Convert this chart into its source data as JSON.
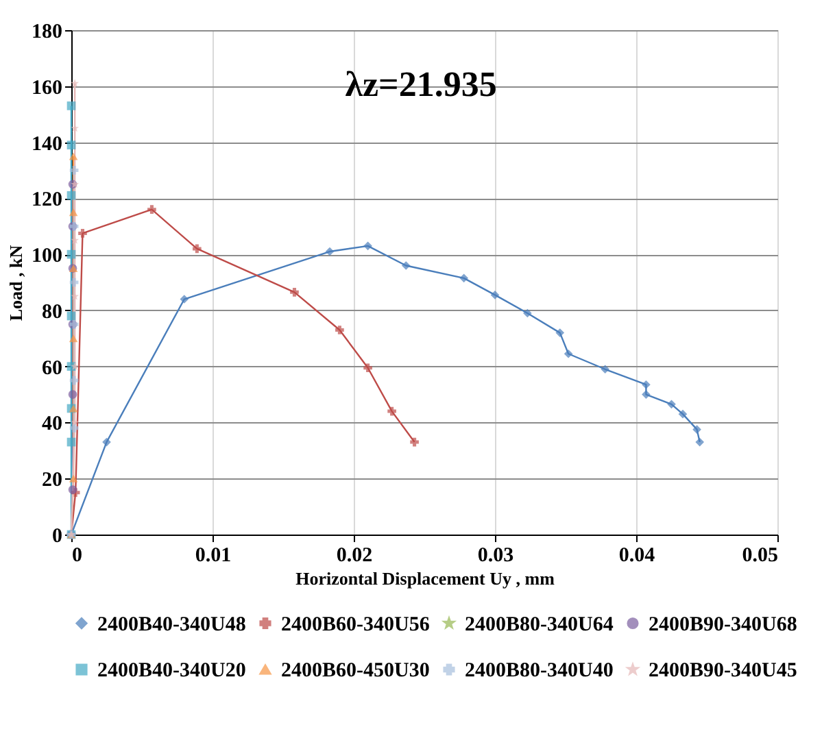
{
  "chart_data": {
    "type": "line",
    "annotations": [
      "λz=21.935"
    ],
    "xlabel": "Horizontal Displacement Uy , mm",
    "ylabel": "Load , kN",
    "xlim": [
      0,
      0.05
    ],
    "xticks": [
      0,
      0.01,
      0.02,
      0.03,
      0.04,
      0.05
    ],
    "ylim": [
      0,
      180
    ],
    "yticks": [
      0,
      20,
      40,
      60,
      80,
      100,
      120,
      140,
      160,
      180
    ],
    "grid": true,
    "legend": "bottom",
    "series": [
      {
        "name": "2400B40-340U48",
        "color": "#4a7ebb",
        "marker": "diamond",
        "x": [
          0,
          0.0025,
          0.008,
          0.0183,
          0.021,
          0.0237,
          0.0278,
          0.03,
          0.0323,
          0.0346,
          0.0352,
          0.0378,
          0.0407,
          0.0407,
          0.0425,
          0.0433,
          0.0443,
          0.0445
        ],
        "values": [
          0,
          33,
          84,
          101,
          103,
          96,
          91.5,
          85.5,
          79,
          72,
          64.5,
          59,
          53.5,
          50,
          46.5,
          43,
          37.5,
          33
        ]
      },
      {
        "name": "2400B60-340U56",
        "color": "#be4b48",
        "marker": "cross",
        "x": [
          0,
          0.0003,
          0.0008,
          0.0057,
          0.0089,
          0.0158,
          0.019,
          0.021,
          0.0227,
          0.0243
        ],
        "values": [
          0,
          15,
          107.5,
          116,
          102,
          86.5,
          73,
          59.5,
          44,
          33
        ]
      },
      {
        "name": "2400B80-340U64",
        "color": "#98b954",
        "marker": "star",
        "x": [
          null
        ],
        "values": [
          null
        ]
      },
      {
        "name": "2400B90-340U68",
        "color": "#7d60a0",
        "marker": "circle",
        "x": [
          0,
          0.0001,
          0.0001,
          0.0001,
          0.0001,
          0.0001,
          0.0001
        ],
        "values": [
          0,
          16,
          50,
          75,
          95,
          110,
          125
        ]
      },
      {
        "name": "2400B40-340U20",
        "color": "#46aac5",
        "marker": "square",
        "x": [
          0,
          0,
          0,
          0,
          0,
          0,
          0,
          0,
          0
        ],
        "values": [
          0,
          33,
          45,
          60,
          78,
          100,
          121,
          139,
          153
        ]
      },
      {
        "name": "2400B60-450U30",
        "color": "#f79646",
        "marker": "triangle",
        "x": [
          0,
          0.00015,
          0.00015,
          0.00015,
          0.00015,
          0.00015,
          0.00015
        ],
        "values": [
          0,
          20,
          45,
          70,
          95,
          115,
          135
        ]
      },
      {
        "name": "2400B80-340U40",
        "color": "#a7c0de",
        "marker": "cross",
        "x": [
          0,
          0.0002,
          0.0002,
          0.0002,
          0.0002,
          0.0002,
          0.0002
        ],
        "values": [
          0,
          38,
          55,
          75,
          90,
          110,
          130
        ]
      },
      {
        "name": "2400B90-340U45",
        "color": "#e6b9b8",
        "marker": "star",
        "x": [
          0,
          0.00025,
          0.00025,
          0.00025,
          0.00025,
          0.00025,
          0.00025,
          0.00025
        ],
        "values": [
          0,
          40,
          60,
          85,
          105,
          125,
          145,
          161
        ]
      }
    ]
  }
}
